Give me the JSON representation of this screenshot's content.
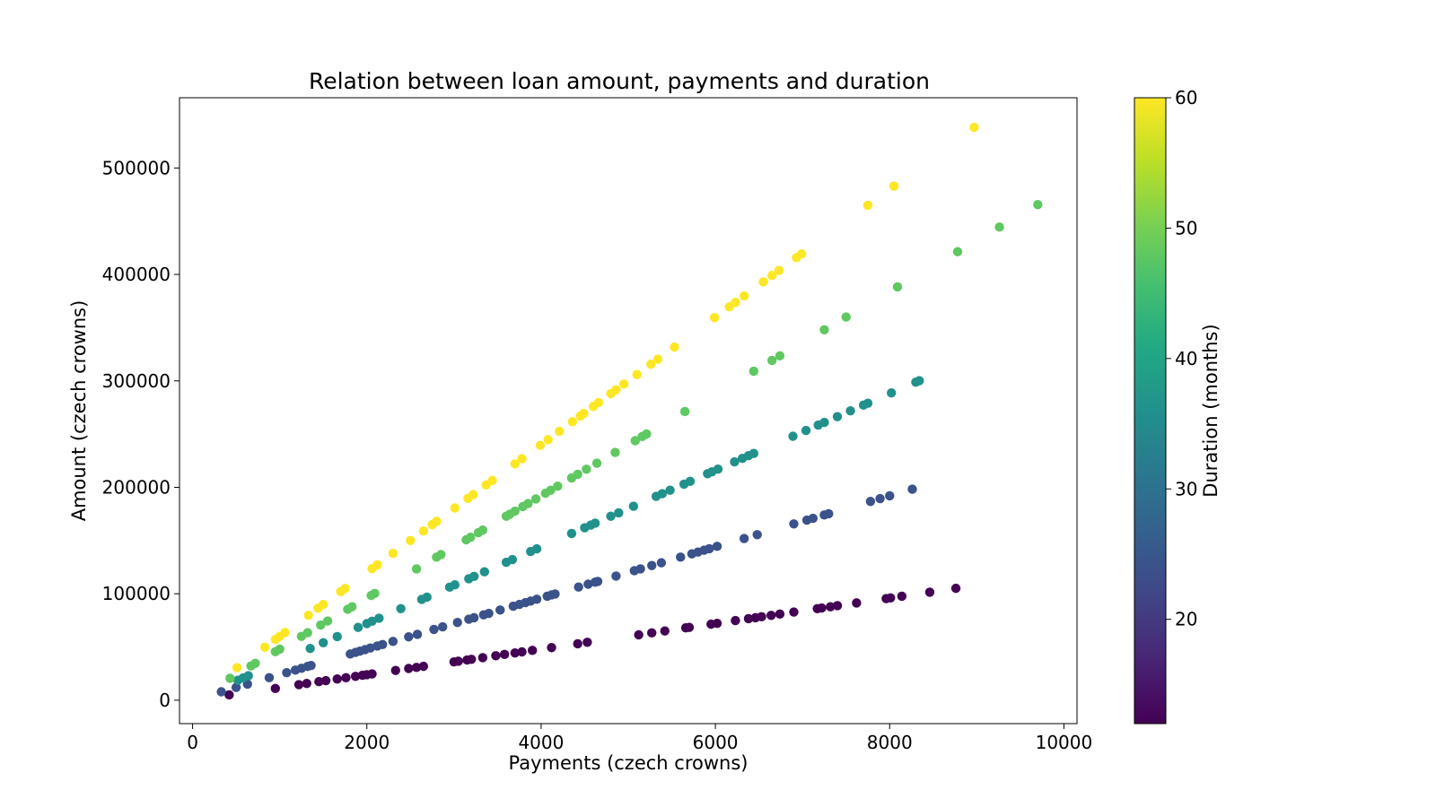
{
  "chart_data": {
    "type": "scatter",
    "title": "Relation between loan amount, payments and duration",
    "xlabel": "Payments (czech crowns)",
    "ylabel": "Amount (czech crowns)",
    "xlim": [
      -150,
      10150
    ],
    "ylim": [
      -22000,
      566000
    ],
    "xticks": [
      0,
      2000,
      4000,
      6000,
      8000,
      10000
    ],
    "yticks": [
      0,
      100000,
      200000,
      300000,
      400000,
      500000
    ],
    "grid": false,
    "colorbar": {
      "label": "Duration (months)",
      "range": [
        12,
        60
      ],
      "ticks": [
        20,
        30,
        40,
        50,
        60
      ],
      "colormap": "viridis"
    },
    "series": [
      {
        "duration": 12,
        "points": [
          [
            420,
            5000
          ],
          [
            950,
            11000
          ],
          [
            1220,
            14600
          ],
          [
            1310,
            15700
          ],
          [
            1450,
            17400
          ],
          [
            1530,
            18400
          ],
          [
            1660,
            19900
          ],
          [
            1760,
            21100
          ],
          [
            1870,
            22400
          ],
          [
            1950,
            23400
          ],
          [
            2000,
            24000
          ],
          [
            2060,
            24700
          ],
          [
            2330,
            28000
          ],
          [
            2480,
            29800
          ],
          [
            2570,
            30800
          ],
          [
            2650,
            31800
          ],
          [
            3000,
            36000
          ],
          [
            3050,
            36600
          ],
          [
            3150,
            37800
          ],
          [
            3200,
            38400
          ],
          [
            3330,
            40000
          ],
          [
            3480,
            41800
          ],
          [
            3580,
            43000
          ],
          [
            3700,
            44400
          ],
          [
            3780,
            45400
          ],
          [
            3900,
            46800
          ],
          [
            4120,
            49400
          ],
          [
            4420,
            53000
          ],
          [
            4530,
            54400
          ],
          [
            5120,
            61400
          ],
          [
            5270,
            63200
          ],
          [
            5420,
            65000
          ],
          [
            5660,
            68000
          ],
          [
            5700,
            68400
          ],
          [
            5950,
            71400
          ],
          [
            6020,
            72200
          ],
          [
            6230,
            74800
          ],
          [
            6380,
            76600
          ],
          [
            6460,
            77500
          ],
          [
            6530,
            78400
          ],
          [
            6640,
            79700
          ],
          [
            6740,
            80900
          ],
          [
            6900,
            82800
          ],
          [
            7170,
            86000
          ],
          [
            7220,
            86600
          ],
          [
            7320,
            87800
          ],
          [
            7400,
            88800
          ],
          [
            7620,
            91400
          ],
          [
            7960,
            95500
          ],
          [
            8010,
            96100
          ],
          [
            8140,
            97700
          ],
          [
            8460,
            101500
          ],
          [
            8760,
            105100
          ]
        ]
      },
      {
        "duration": 24,
        "points": [
          [
            330,
            7900
          ],
          [
            500,
            12000
          ],
          [
            630,
            15100
          ],
          [
            880,
            21100
          ],
          [
            1080,
            25900
          ],
          [
            1180,
            28300
          ],
          [
            1250,
            30000
          ],
          [
            1320,
            31700
          ],
          [
            1360,
            32600
          ],
          [
            1810,
            43400
          ],
          [
            1870,
            44900
          ],
          [
            1920,
            46100
          ],
          [
            1980,
            47500
          ],
          [
            2040,
            49000
          ],
          [
            2120,
            50900
          ],
          [
            2180,
            52300
          ],
          [
            2300,
            55200
          ],
          [
            2480,
            59500
          ],
          [
            2580,
            61900
          ],
          [
            2770,
            66500
          ],
          [
            2870,
            68900
          ],
          [
            3040,
            73000
          ],
          [
            3170,
            76100
          ],
          [
            3230,
            77500
          ],
          [
            3340,
            80200
          ],
          [
            3400,
            81600
          ],
          [
            3530,
            84700
          ],
          [
            3680,
            88300
          ],
          [
            3750,
            90000
          ],
          [
            3820,
            91700
          ],
          [
            3880,
            93100
          ],
          [
            3950,
            94800
          ],
          [
            4070,
            97700
          ],
          [
            4120,
            98900
          ],
          [
            4160,
            99800
          ],
          [
            4430,
            106300
          ],
          [
            4540,
            109000
          ],
          [
            4620,
            110900
          ],
          [
            4650,
            111600
          ],
          [
            4860,
            116600
          ],
          [
            5070,
            121700
          ],
          [
            5140,
            123400
          ],
          [
            5270,
            126500
          ],
          [
            5380,
            129100
          ],
          [
            5600,
            134400
          ],
          [
            5730,
            137500
          ],
          [
            5800,
            139200
          ],
          [
            5870,
            140900
          ],
          [
            5930,
            142300
          ],
          [
            6020,
            144500
          ],
          [
            6330,
            151900
          ],
          [
            6480,
            155500
          ],
          [
            6900,
            165600
          ],
          [
            7050,
            169200
          ],
          [
            7120,
            170900
          ],
          [
            7250,
            174000
          ],
          [
            7300,
            175200
          ],
          [
            7780,
            186700
          ],
          [
            7890,
            189400
          ],
          [
            8000,
            192000
          ],
          [
            8260,
            198200
          ]
        ]
      },
      {
        "duration": 36,
        "points": [
          [
            520,
            18700
          ],
          [
            580,
            20900
          ],
          [
            640,
            23000
          ],
          [
            1350,
            48600
          ],
          [
            1500,
            54000
          ],
          [
            1660,
            59800
          ],
          [
            1900,
            68400
          ],
          [
            2000,
            72000
          ],
          [
            2060,
            74200
          ],
          [
            2140,
            77000
          ],
          [
            2390,
            86000
          ],
          [
            2630,
            94700
          ],
          [
            2690,
            96800
          ],
          [
            2950,
            106200
          ],
          [
            3010,
            108400
          ],
          [
            3170,
            114100
          ],
          [
            3230,
            116300
          ],
          [
            3350,
            120600
          ],
          [
            3600,
            129600
          ],
          [
            3670,
            132100
          ],
          [
            3880,
            139700
          ],
          [
            3950,
            142200
          ],
          [
            4350,
            156600
          ],
          [
            4500,
            162000
          ],
          [
            4570,
            164500
          ],
          [
            4620,
            166300
          ],
          [
            4800,
            172800
          ],
          [
            4890,
            176000
          ],
          [
            5060,
            182200
          ],
          [
            5320,
            191500
          ],
          [
            5390,
            194000
          ],
          [
            5480,
            197300
          ],
          [
            5640,
            203000
          ],
          [
            5710,
            205600
          ],
          [
            5910,
            212800
          ],
          [
            5960,
            214600
          ],
          [
            6030,
            217100
          ],
          [
            6220,
            223900
          ],
          [
            6310,
            227200
          ],
          [
            6380,
            229700
          ],
          [
            6440,
            231800
          ],
          [
            6890,
            248000
          ],
          [
            7040,
            253400
          ],
          [
            7180,
            258500
          ],
          [
            7250,
            261000
          ],
          [
            7400,
            266400
          ],
          [
            7550,
            271800
          ],
          [
            7700,
            277200
          ],
          [
            7750,
            279000
          ],
          [
            8020,
            288700
          ],
          [
            8300,
            298800
          ],
          [
            8340,
            300200
          ]
        ]
      },
      {
        "duration": 48,
        "points": [
          [
            430,
            20600
          ],
          [
            670,
            32200
          ],
          [
            720,
            34600
          ],
          [
            950,
            45600
          ],
          [
            1000,
            48000
          ],
          [
            1250,
            60000
          ],
          [
            1320,
            63400
          ],
          [
            1470,
            70600
          ],
          [
            1550,
            74400
          ],
          [
            1780,
            85400
          ],
          [
            1830,
            87800
          ],
          [
            2050,
            98400
          ],
          [
            2090,
            100300
          ],
          [
            2570,
            123400
          ],
          [
            2800,
            134400
          ],
          [
            2850,
            136800
          ],
          [
            3140,
            150700
          ],
          [
            3190,
            153100
          ],
          [
            3280,
            157400
          ],
          [
            3330,
            159800
          ],
          [
            3600,
            172800
          ],
          [
            3640,
            174700
          ],
          [
            3700,
            177600
          ],
          [
            3790,
            181900
          ],
          [
            3850,
            184800
          ],
          [
            3940,
            189100
          ],
          [
            4050,
            194400
          ],
          [
            4110,
            197300
          ],
          [
            4190,
            201100
          ],
          [
            4350,
            208800
          ],
          [
            4420,
            212200
          ],
          [
            4520,
            217000
          ],
          [
            4640,
            222700
          ],
          [
            4850,
            232800
          ],
          [
            5080,
            243800
          ],
          [
            5160,
            247700
          ],
          [
            5210,
            250100
          ],
          [
            5650,
            271200
          ],
          [
            6440,
            309100
          ],
          [
            6650,
            319200
          ],
          [
            6740,
            323500
          ],
          [
            7250,
            348000
          ],
          [
            7500,
            360000
          ],
          [
            8090,
            388300
          ],
          [
            8780,
            421400
          ],
          [
            9260,
            444500
          ],
          [
            9700,
            465600
          ]
        ]
      },
      {
        "duration": 60,
        "points": [
          [
            510,
            30600
          ],
          [
            830,
            49800
          ],
          [
            950,
            57000
          ],
          [
            1000,
            60000
          ],
          [
            1060,
            63600
          ],
          [
            1330,
            79800
          ],
          [
            1440,
            86400
          ],
          [
            1500,
            90000
          ],
          [
            1700,
            102000
          ],
          [
            1750,
            105000
          ],
          [
            2060,
            123600
          ],
          [
            2120,
            127200
          ],
          [
            2300,
            138000
          ],
          [
            2500,
            150000
          ],
          [
            2650,
            159000
          ],
          [
            2750,
            165000
          ],
          [
            2800,
            168000
          ],
          [
            3010,
            180600
          ],
          [
            3160,
            189600
          ],
          [
            3220,
            193200
          ],
          [
            3370,
            202200
          ],
          [
            3440,
            206400
          ],
          [
            3700,
            222000
          ],
          [
            3780,
            226800
          ],
          [
            3990,
            239400
          ],
          [
            4080,
            244800
          ],
          [
            4210,
            252600
          ],
          [
            4360,
            261600
          ],
          [
            4450,
            267000
          ],
          [
            4490,
            269400
          ],
          [
            4600,
            276000
          ],
          [
            4660,
            279600
          ],
          [
            4800,
            288000
          ],
          [
            4860,
            291600
          ],
          [
            4950,
            297000
          ],
          [
            5100,
            306000
          ],
          [
            5260,
            315600
          ],
          [
            5340,
            320400
          ],
          [
            5530,
            331800
          ],
          [
            5990,
            359400
          ],
          [
            6160,
            369600
          ],
          [
            6230,
            373800
          ],
          [
            6330,
            379800
          ],
          [
            6550,
            393000
          ],
          [
            6650,
            399000
          ],
          [
            6730,
            403800
          ],
          [
            6930,
            415800
          ],
          [
            6990,
            419400
          ],
          [
            7750,
            465000
          ],
          [
            8050,
            483000
          ],
          [
            8970,
            538200
          ]
        ]
      }
    ]
  }
}
